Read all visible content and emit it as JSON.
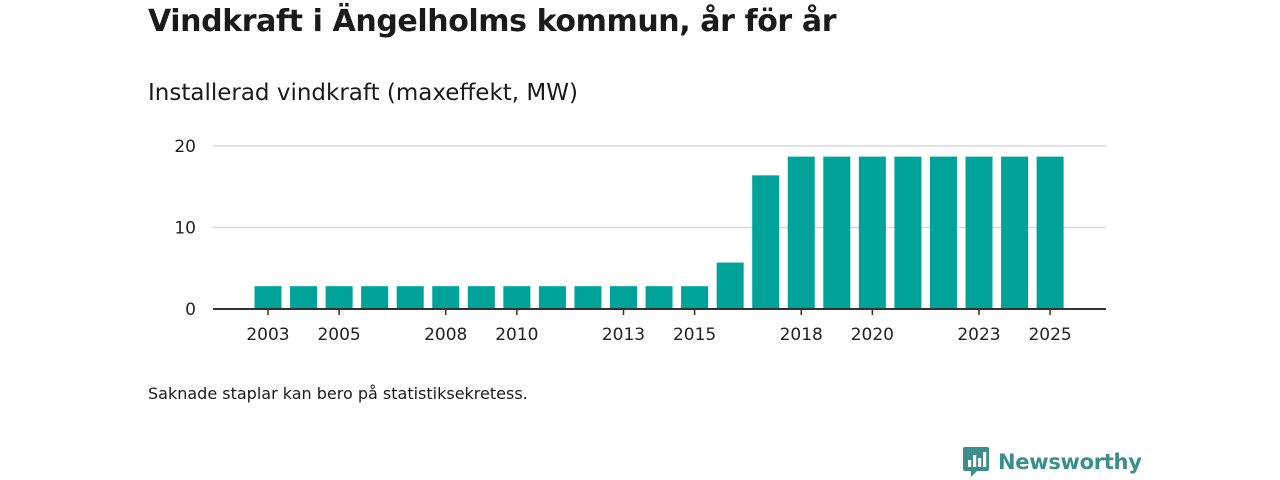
{
  "title": "Vindkraft i Ängelholms kommun, år för år",
  "subtitle": "Installerad vindkraft (maxeffekt, MW)",
  "note": "Saknade staplar kan bero på statistiksekretess.",
  "brand": {
    "name": "Newsworthy",
    "color": "#3a8f8a"
  },
  "chart_data": {
    "type": "bar",
    "title": "Vindkraft i Ängelholms kommun, år för år",
    "ylabel": "Installerad vindkraft (maxeffekt, MW)",
    "xlabel": "",
    "categories": [
      2003,
      2004,
      2005,
      2006,
      2007,
      2008,
      2009,
      2010,
      2011,
      2012,
      2013,
      2014,
      2015,
      2016,
      2017,
      2018,
      2019,
      2020,
      2021,
      2022,
      2023,
      2024,
      2025
    ],
    "values": [
      2.8,
      2.8,
      2.8,
      2.8,
      2.8,
      2.8,
      2.8,
      2.8,
      2.8,
      2.8,
      2.8,
      2.8,
      2.8,
      5.7,
      16.4,
      18.7,
      18.7,
      18.7,
      18.7,
      18.7,
      18.7,
      18.7,
      18.7
    ],
    "x_tick_labels": [
      "2003",
      "2005",
      "2008",
      "2010",
      "2013",
      "2015",
      "2018",
      "2020",
      "2023",
      "2025"
    ],
    "y_ticks": [
      0,
      10,
      20
    ],
    "ylim": [
      0,
      20
    ],
    "grid": true,
    "bar_color": "#00a39a",
    "grid_color": "#d9d9d9"
  }
}
